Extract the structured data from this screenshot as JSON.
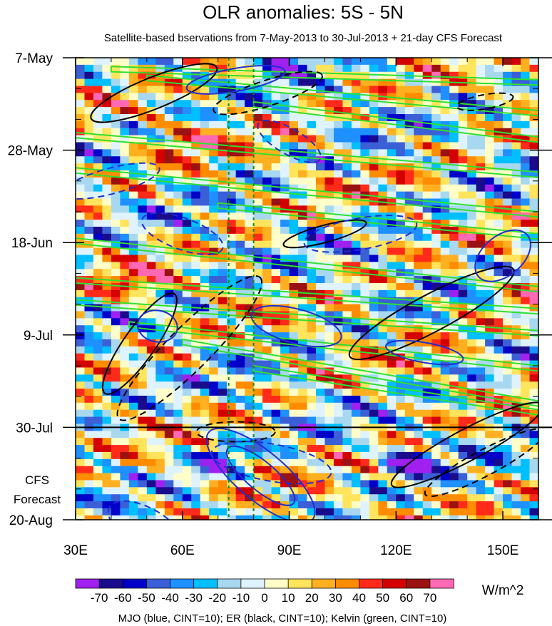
{
  "chart_data": {
    "type": "heatmap",
    "title": "OLR anomalies: 5S - 5N",
    "subtitle": "Satellite-based bservations from 7-May-2013 to 30-Jul-2013 + 21-day CFS Forecast",
    "x_axis": {
      "range": [
        30,
        160
      ],
      "ticks": [
        30,
        60,
        90,
        120,
        150
      ],
      "tick_labels": [
        "30E",
        "60E",
        "90E",
        "120E",
        "150E"
      ]
    },
    "y_axis": {
      "range_days": [
        0,
        105
      ],
      "ticks": [
        0,
        21,
        42,
        63,
        84,
        105
      ],
      "tick_labels": [
        "7-May",
        "28-May",
        "18-Jun",
        "9-Jul",
        "30-Jul",
        "20-Aug"
      ]
    },
    "forecast_split_day": 84,
    "forecast_label_lines": [
      "CFS",
      "Forecast"
    ],
    "reference_lines_lon": [
      73,
      80
    ],
    "colorbar": {
      "unit": "W/m^2",
      "levels": [
        -70,
        -60,
        -50,
        -40,
        -30,
        -20,
        -10,
        0,
        10,
        20,
        30,
        40,
        50,
        60,
        70
      ],
      "level_labels": [
        "-70",
        "-60",
        "-50",
        "-40",
        "-30",
        "-20",
        "-10",
        "0",
        "10",
        "20",
        "30",
        "40",
        "50",
        "60",
        "70"
      ],
      "colors": [
        "#a020f0",
        "#1a0a8c",
        "#0000c8",
        "#3a5fd6",
        "#1e90ff",
        "#00bfff",
        "#a8d8f0",
        "#dff3ff",
        "#fffdc8",
        "#ffe45c",
        "#ffb020",
        "#ff8c00",
        "#ff2a1a",
        "#d40000",
        "#9b1212",
        "#ff69b4"
      ]
    },
    "contour_legend": "MJO (blue, CINT=10); ER (black, CINT=10); Kelvin (green, CINT=10)",
    "series_colors": {
      "MJO": "#1f2fd0",
      "ER": "#000000",
      "Kelvin": "#2fe02f"
    }
  }
}
